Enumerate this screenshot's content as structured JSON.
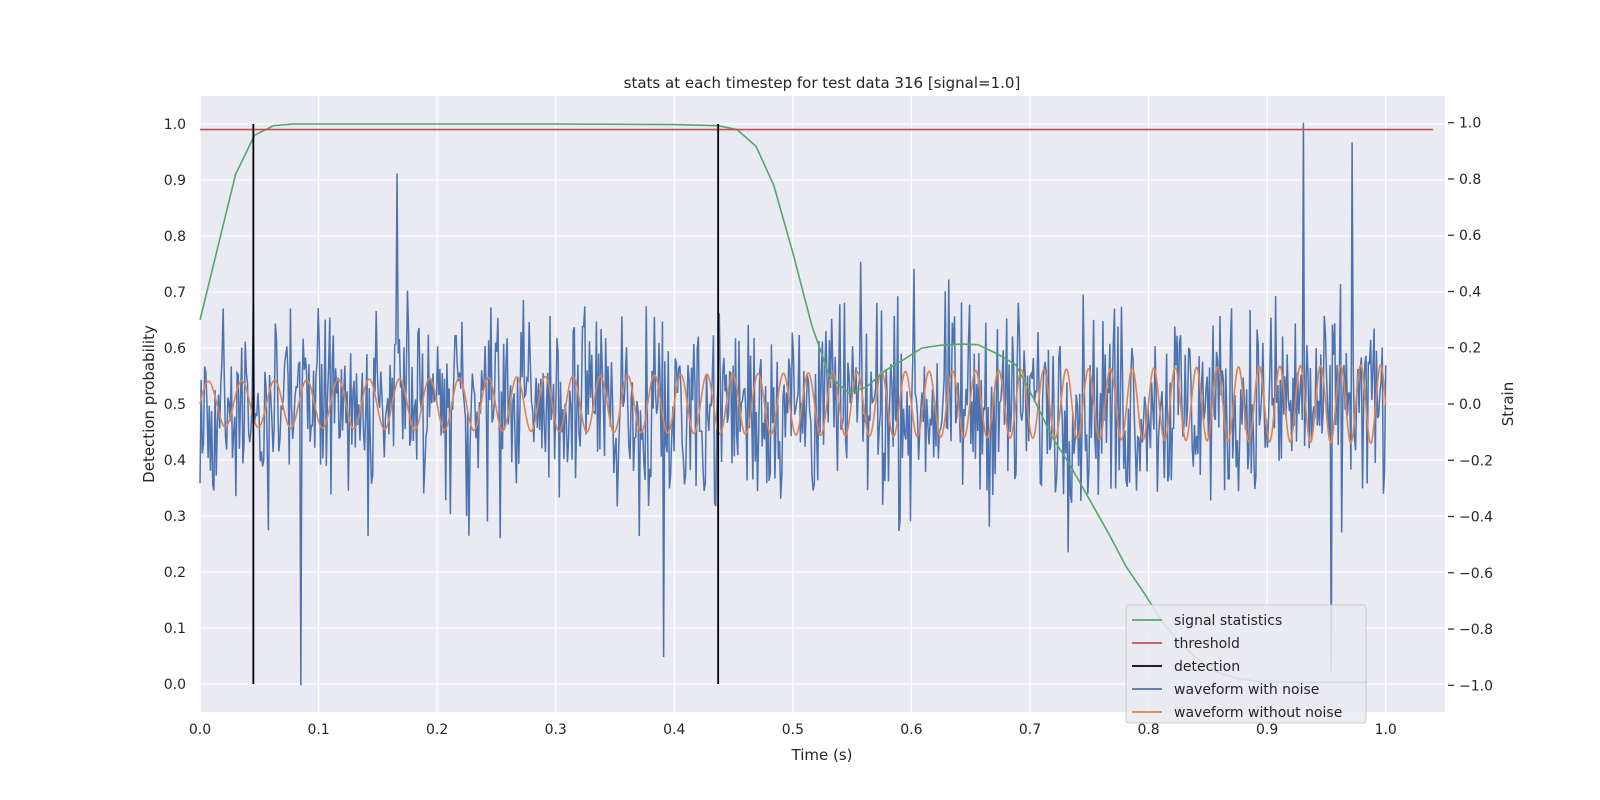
{
  "chart_data": {
    "type": "line",
    "title": "stats at each timestep for test data 316 [signal=1.0]",
    "xlabel": "Time (s)",
    "ylabel_left": "Detection probability",
    "ylabel_right": "Strain",
    "xlim": [
      0.0,
      1.05
    ],
    "ylim_left": [
      -0.05,
      1.05
    ],
    "ylim_right": [
      -1.095,
      1.095
    ],
    "xticks": [
      "0.0",
      "0.1",
      "0.2",
      "0.3",
      "0.4",
      "0.5",
      "0.6",
      "0.7",
      "0.8",
      "0.9",
      "1.0"
    ],
    "yticks_left": [
      "0.0",
      "0.1",
      "0.2",
      "0.3",
      "0.4",
      "0.5",
      "0.6",
      "0.7",
      "0.8",
      "0.9",
      "1.0"
    ],
    "yticks_right": [
      "−1.0",
      "−0.8",
      "−0.6",
      "−0.4",
      "−0.2",
      "0.0",
      "0.2",
      "0.4",
      "0.6",
      "0.8",
      "1.0"
    ],
    "grid": true,
    "legend_position": "lower-right",
    "series": [
      {
        "name": "signal statistics",
        "color": "#55a868",
        "axis": "left",
        "x": [
          0.0,
          0.015,
          0.03,
          0.046,
          0.062,
          0.078,
          0.1,
          0.2,
          0.3,
          0.4,
          0.437,
          0.453,
          0.469,
          0.484,
          0.5,
          0.516,
          0.531,
          0.547,
          0.562,
          0.578,
          0.594,
          0.609,
          0.625,
          0.641,
          0.656,
          0.672,
          0.688,
          0.703,
          0.719,
          0.734,
          0.75,
          0.766,
          0.781,
          0.797,
          0.812,
          0.828,
          0.844,
          0.859,
          0.875,
          0.891,
          0.906,
          0.922,
          0.937,
          0.953,
          0.969,
          0.984
        ],
        "y": [
          0.65,
          0.78,
          0.91,
          0.98,
          0.997,
          1.0,
          1.0,
          1.0,
          1.0,
          0.999,
          0.997,
          0.99,
          0.96,
          0.89,
          0.77,
          0.64,
          0.55,
          0.52,
          0.53,
          0.56,
          0.58,
          0.6,
          0.605,
          0.607,
          0.606,
          0.59,
          0.57,
          0.51,
          0.44,
          0.39,
          0.33,
          0.27,
          0.21,
          0.16,
          0.11,
          0.07,
          0.04,
          0.02,
          0.01,
          0.005,
          0.004,
          0.003,
          0.003,
          0.003,
          0.003,
          0.003
        ]
      },
      {
        "name": "threshold",
        "color": "#c44e52",
        "axis": "left",
        "x": [
          0.0,
          1.04
        ],
        "y": [
          0.99,
          0.99
        ]
      },
      {
        "name": "detection",
        "color": "#000000",
        "axis": "left",
        "x_values": [
          0.045,
          0.437
        ],
        "y_range": [
          0.0,
          1.0
        ]
      },
      {
        "name": "waveform with noise",
        "color": "#4c72b0",
        "axis": "right",
        "x_range": [
          0.0,
          1.0
        ],
        "y_range": [
          -1.0,
          1.0
        ],
        "peaks": [
          {
            "x": 0.085,
            "y": -1.0
          },
          {
            "x": 0.391,
            "y": -0.9
          },
          {
            "x": 0.931,
            "y": 1.0
          },
          {
            "x": 0.972,
            "y": 0.93
          },
          {
            "x": 0.166,
            "y": 0.82
          },
          {
            "x": 0.954,
            "y": -0.95
          }
        ]
      },
      {
        "name": "waveform without noise",
        "color": "#dd8452",
        "axis": "right",
        "x_range": [
          0.0,
          1.0
        ],
        "amplitude_start": 0.08,
        "amplitude_end": 0.14,
        "cycles_start": 35,
        "cycles_end": 60
      }
    ]
  }
}
